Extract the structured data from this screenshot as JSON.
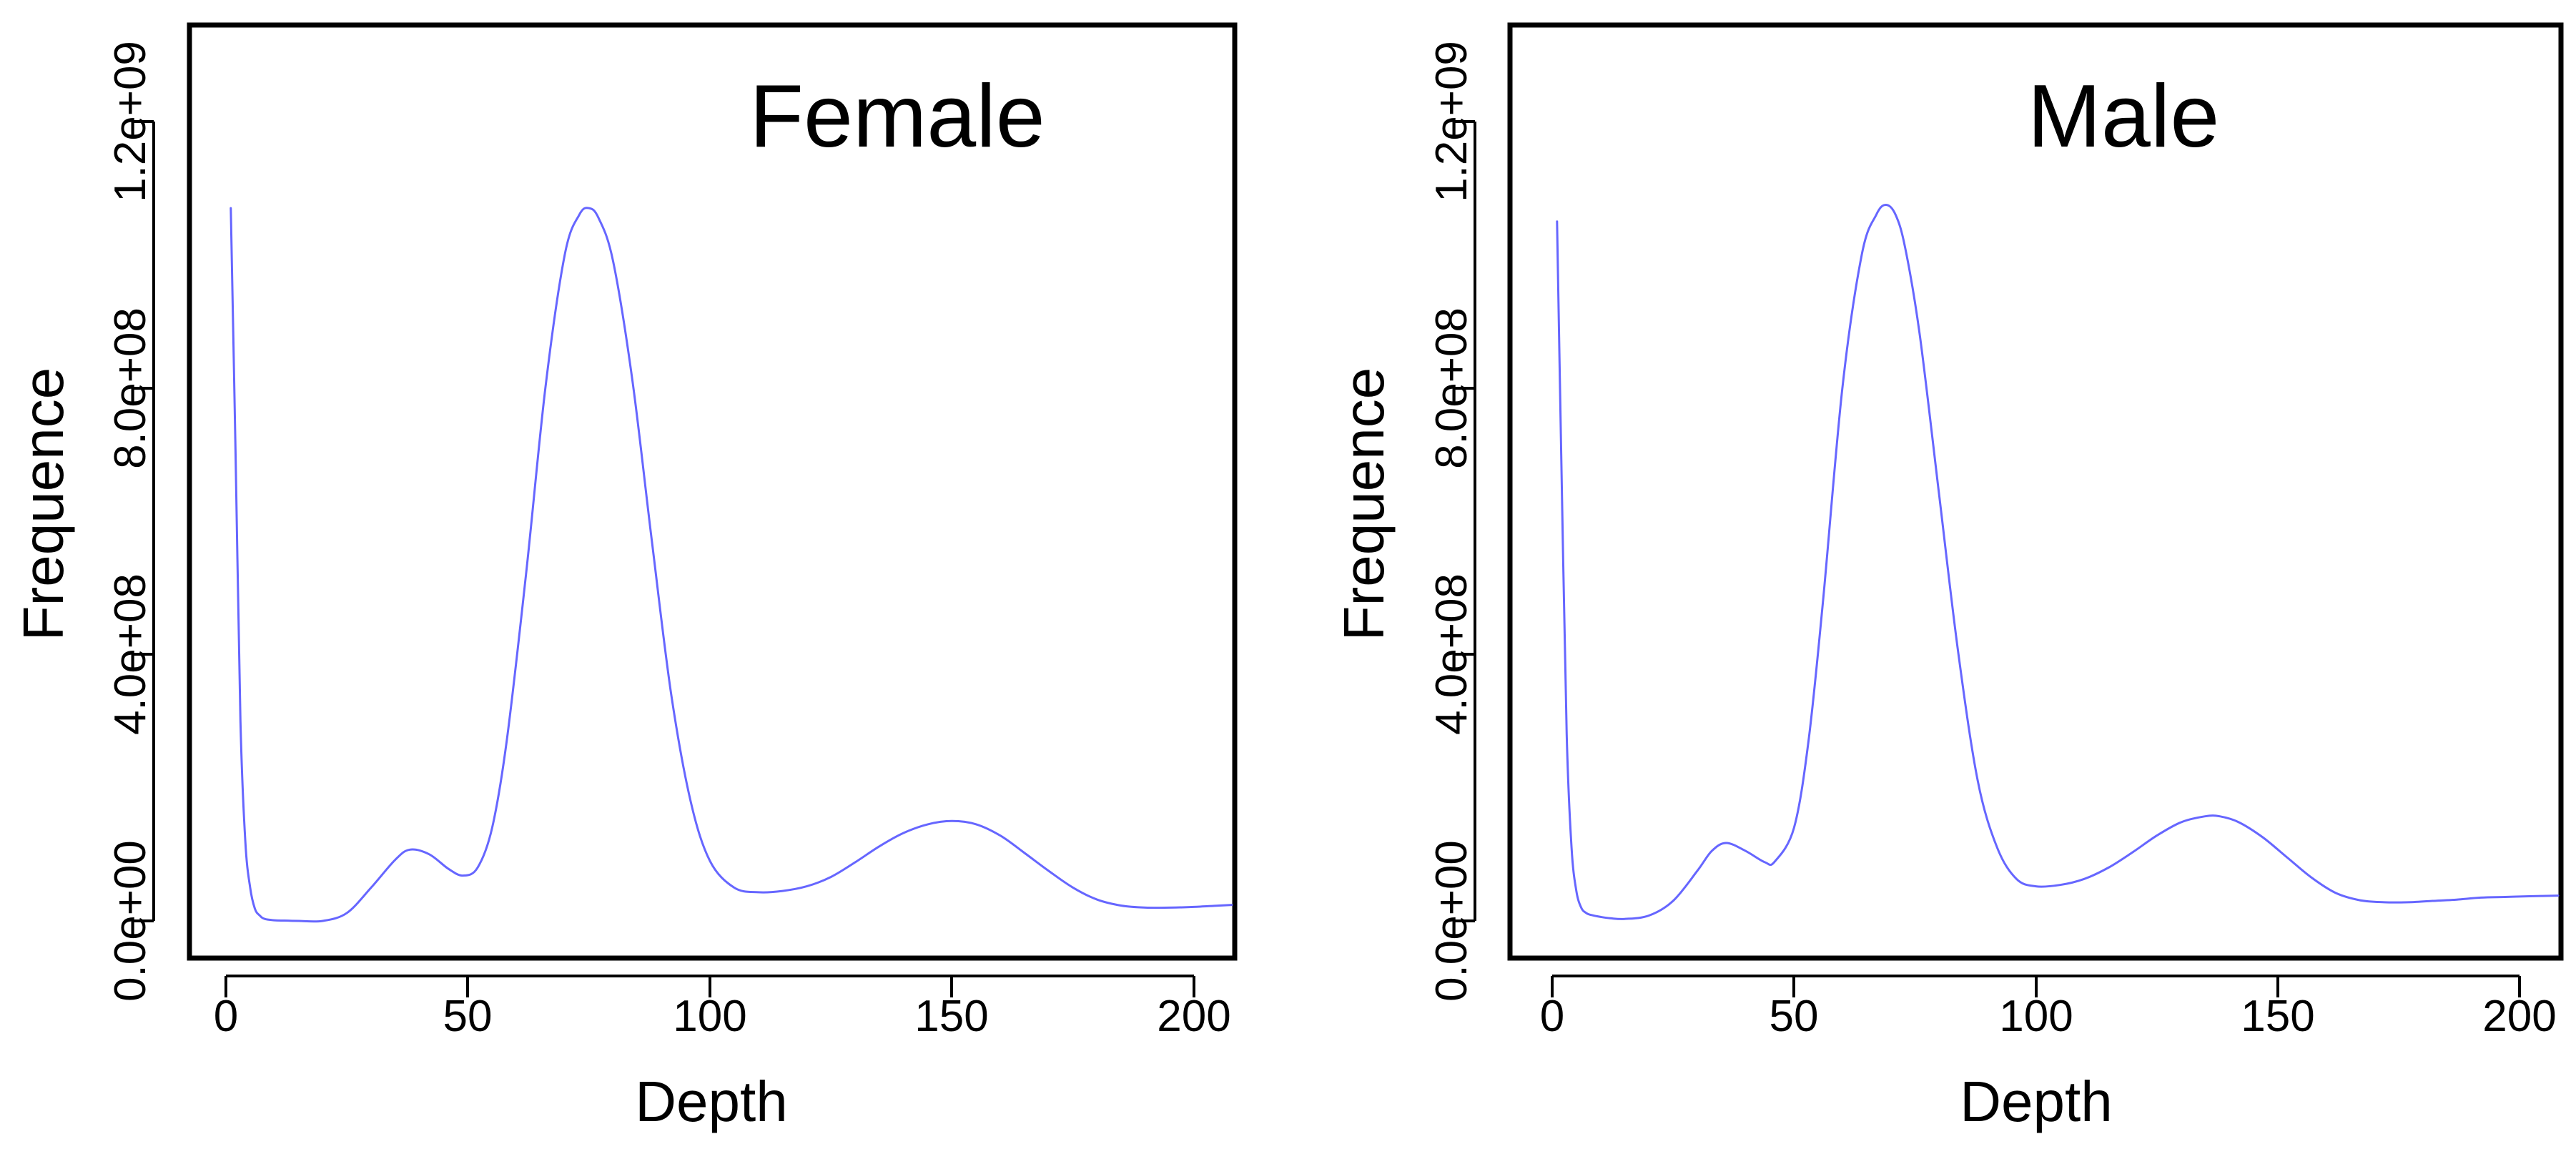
{
  "chart_data": [
    {
      "type": "line",
      "title": "Female",
      "xlabel": "Depth",
      "ylabel": "Frequence",
      "xlim": [
        -8,
        208
      ],
      "ylim": [
        -50000000,
        1350000000
      ],
      "xticks": [
        0,
        50,
        100,
        150,
        200
      ],
      "xtick_labels": [
        "0",
        "50",
        "100",
        "150",
        "200"
      ],
      "yticks": [
        0,
        400000000,
        800000000,
        1200000000
      ],
      "ytick_labels": [
        "0.0e+00",
        "4.0e+08",
        "8.0e+08",
        "1.2e+09"
      ],
      "grid": false,
      "series": [
        {
          "name": "Female",
          "color": "#6666ff",
          "x": [
            1,
            2,
            3,
            4,
            5,
            6,
            7,
            8,
            10,
            12,
            15,
            20,
            25,
            30,
            35,
            38,
            42,
            46,
            49,
            52,
            55,
            58,
            62,
            66,
            70,
            73,
            75,
            77,
            80,
            84,
            88,
            92,
            96,
            100,
            105,
            110,
            115,
            120,
            125,
            130,
            135,
            140,
            145,
            150,
            155,
            160,
            165,
            170,
            175,
            180,
            185,
            190,
            195,
            200,
            205,
            208
          ],
          "y": [
            1070000000,
            700000000,
            300000000,
            120000000,
            50000000,
            18000000,
            8000000,
            3000000,
            1000000,
            500000,
            0,
            0,
            12000000,
            50000000,
            92000000,
            107000000,
            100000000,
            78000000,
            68000000,
            80000000,
            140000000,
            270000000,
            520000000,
            800000000,
            1000000000,
            1060000000,
            1070000000,
            1055000000,
            990000000,
            810000000,
            570000000,
            340000000,
            180000000,
            90000000,
            50000000,
            43000000,
            45000000,
            52000000,
            66000000,
            88000000,
            112000000,
            132000000,
            145000000,
            150000000,
            145000000,
            128000000,
            102000000,
            75000000,
            50000000,
            32000000,
            23000000,
            20000000,
            20000000,
            21000000,
            23000000,
            24000000
          ]
        }
      ]
    },
    {
      "type": "line",
      "title": "Male",
      "xlabel": "Depth",
      "ylabel": "Frequence",
      "xlim": [
        -8,
        208
      ],
      "ylim": [
        -50000000,
        1350000000
      ],
      "xticks": [
        0,
        50,
        100,
        150,
        200
      ],
      "xtick_labels": [
        "0",
        "50",
        "100",
        "150",
        "200"
      ],
      "yticks": [
        0,
        400000000,
        800000000,
        1200000000
      ],
      "ytick_labels": [
        "0.0e+00",
        "4.0e+08",
        "8.0e+08",
        "1.2e+09"
      ],
      "grid": false,
      "series": [
        {
          "name": "Male",
          "color": "#6666ff",
          "x": [
            1,
            2,
            3,
            4,
            5,
            6,
            7,
            8,
            10,
            12,
            15,
            20,
            25,
            30,
            33,
            36,
            40,
            44,
            46,
            50,
            53,
            56,
            60,
            64,
            67,
            69,
            71,
            73,
            76,
            80,
            84,
            88,
            92,
            96,
            100,
            105,
            110,
            115,
            120,
            125,
            130,
            135,
            138,
            142,
            147,
            152,
            157,
            162,
            167,
            172,
            177,
            182,
            187,
            192,
            197,
            202,
            208
          ],
          "y": [
            1050000000,
            650000000,
            280000000,
            110000000,
            45000000,
            20000000,
            12000000,
            9000000,
            6000000,
            4000000,
            3000000,
            8000000,
            30000000,
            75000000,
            105000000,
            117000000,
            105000000,
            88000000,
            89000000,
            140000000,
            270000000,
            480000000,
            800000000,
            1000000000,
            1060000000,
            1075000000,
            1060000000,
            1010000000,
            880000000,
            640000000,
            400000000,
            210000000,
            110000000,
            63000000,
            52000000,
            54000000,
            63000000,
            80000000,
            103000000,
            128000000,
            148000000,
            157000000,
            157000000,
            148000000,
            125000000,
            95000000,
            65000000,
            42000000,
            31000000,
            28000000,
            28000000,
            30000000,
            32000000,
            35000000,
            36000000,
            37000000,
            38000000
          ]
        }
      ]
    }
  ]
}
